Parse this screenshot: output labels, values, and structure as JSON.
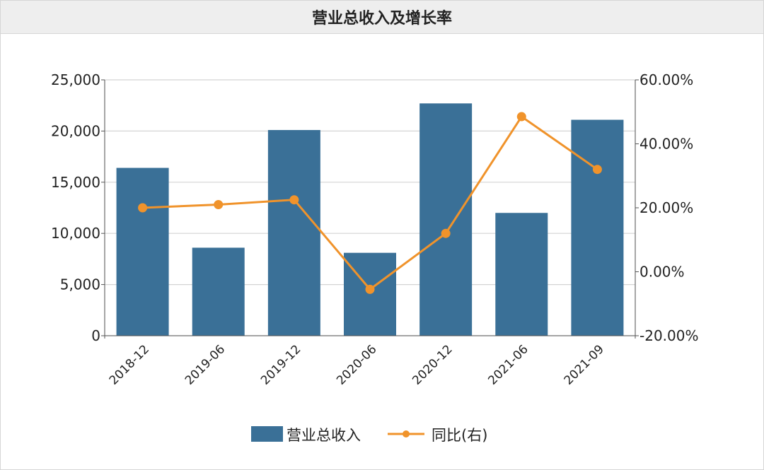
{
  "header": {
    "title": "营业总收入及增长率"
  },
  "chart_data": {
    "type": "bar+line",
    "categories": [
      "2018-12",
      "2019-06",
      "2019-12",
      "2020-06",
      "2020-12",
      "2021-06",
      "2021-09"
    ],
    "series": [
      {
        "name": "营业总收入",
        "type": "bar",
        "axis": "left",
        "color": "#3a7097",
        "values": [
          16400,
          8600,
          20100,
          8100,
          22700,
          12000,
          21100
        ]
      },
      {
        "name": "同比(右)",
        "type": "line",
        "axis": "right",
        "color": "#f0932b",
        "values": [
          0.2,
          0.21,
          0.225,
          -0.055,
          0.12,
          0.485,
          0.32
        ]
      }
    ],
    "y_left": {
      "lim": [
        0,
        25000
      ],
      "ticks": [
        "0",
        "5,000",
        "10,000",
        "15,000",
        "20,000",
        "25,000"
      ]
    },
    "y_right": {
      "lim": [
        -0.2,
        0.6
      ],
      "ticks": [
        "-20.00%",
        "0.00%",
        "20.00%",
        "40.00%",
        "60.00%"
      ]
    },
    "grid": true,
    "legend_position": "bottom"
  }
}
